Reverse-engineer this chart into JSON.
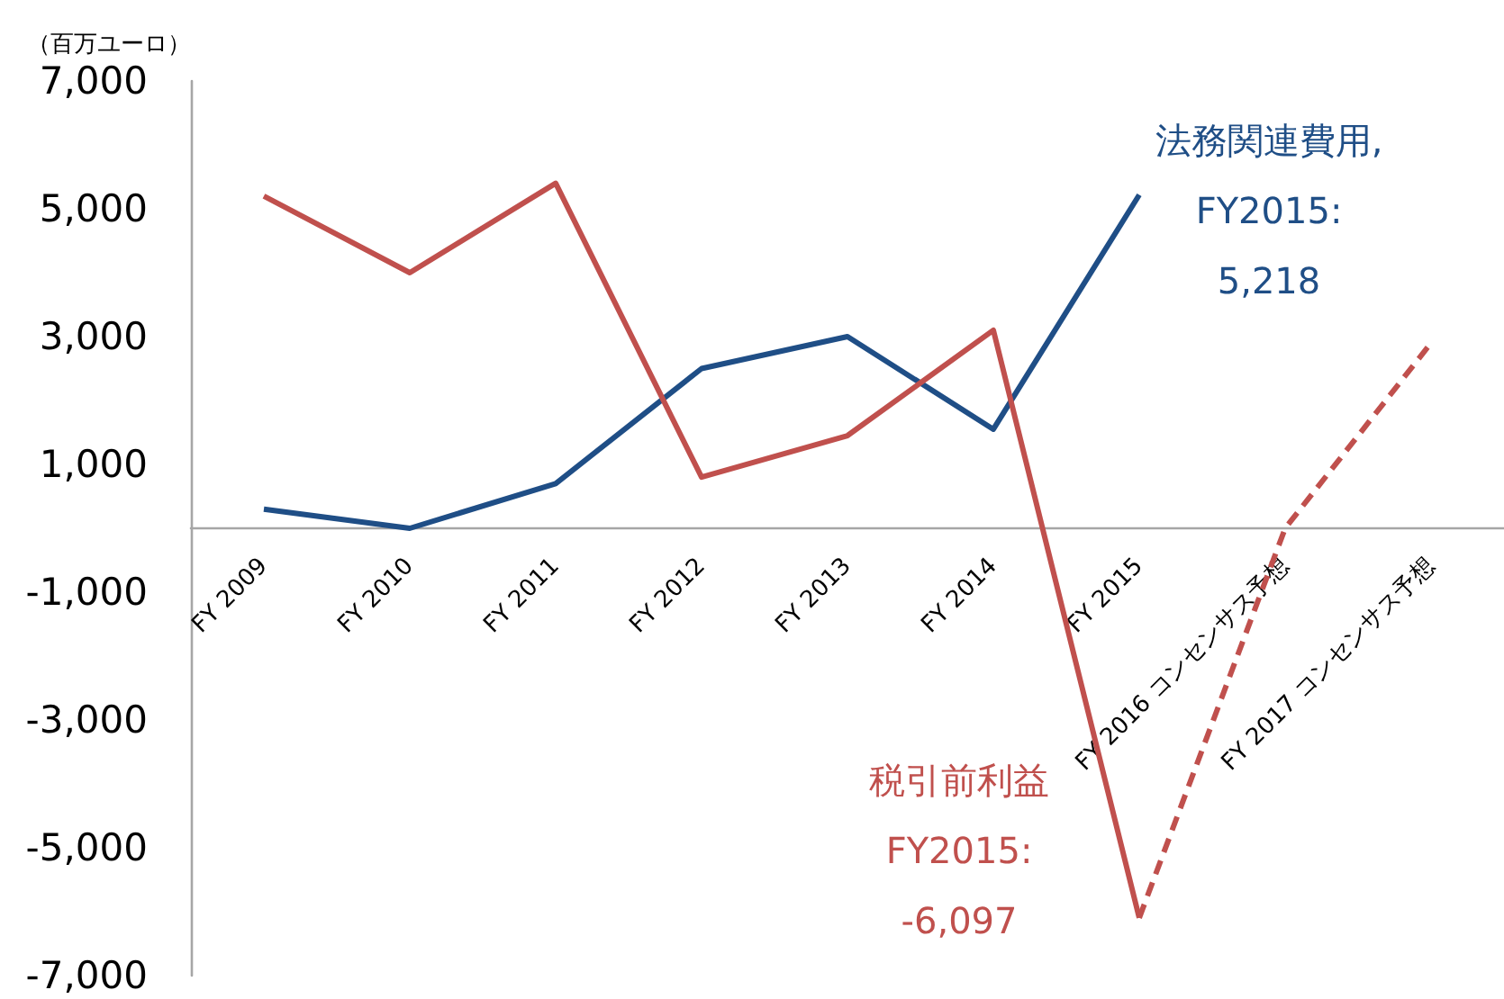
{
  "chart_data": {
    "type": "line",
    "ylabel": "（百万ユーロ）",
    "categories": [
      "FY 2009",
      "FY 2010",
      "FY 2011",
      "FY 2012",
      "FY 2013",
      "FY 2014",
      "FY 2015",
      "FY 2016 コンセンサス予想",
      "FY 2017 コンセンサス予想"
    ],
    "series": [
      {
        "color": "#1f4e86",
        "values": [
          300,
          0,
          700,
          2500,
          3000,
          1550,
          5218,
          null,
          null
        ]
      },
      {
        "color": "#c0504d",
        "values": [
          5200,
          4000,
          5400,
          800,
          1450,
          3100,
          -6097,
          null,
          null
        ]
      },
      {
        "color": "#c0504d",
        "line_style": "dashed",
        "values": [
          null,
          null,
          null,
          null,
          null,
          null,
          -6097,
          0,
          2900
        ]
      }
    ],
    "ylim": [
      -7000,
      7000
    ],
    "yticks": [
      {
        "value": -7000,
        "label": "-7,000"
      },
      {
        "value": -5000,
        "label": "-5,000"
      },
      {
        "value": -3000,
        "label": "-3,000"
      },
      {
        "value": -1000,
        "label": "-1,000"
      },
      {
        "value": 1000,
        "label": "1,000"
      },
      {
        "value": 3000,
        "label": "3,000"
      },
      {
        "value": 5000,
        "label": "5,000"
      },
      {
        "value": 7000,
        "label": "7,000"
      }
    ],
    "grid": false,
    "marker": "none",
    "line_style": "solid",
    "annotations": [
      {
        "text": "法務関連費用,\nFY2015:\n5,218",
        "x": "FY 2015",
        "y": 5218
      },
      {
        "text": "税引前利益\nFY2015:\n-6,097",
        "x": "FY 2015",
        "y": -6097
      }
    ]
  }
}
